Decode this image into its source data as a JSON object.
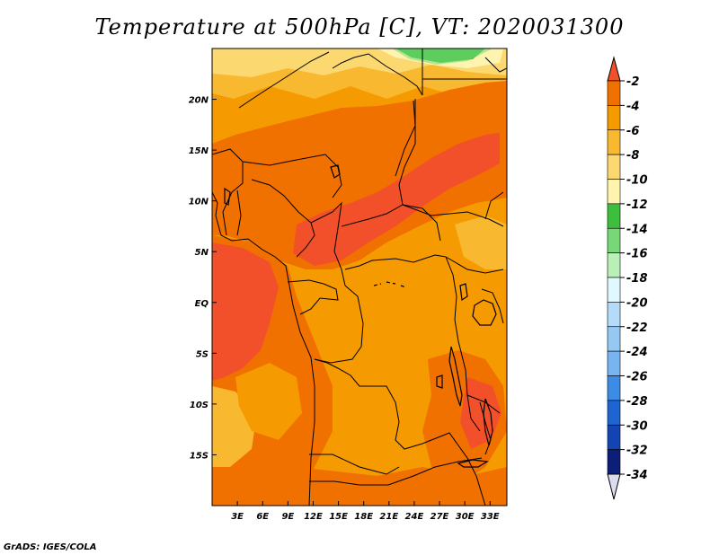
{
  "title": "Temperature at 500hPa [C], VT: 2020031300",
  "credit": "GrADS: IGES/COLA",
  "map": {
    "region": "central-africa",
    "lon_range": [
      0,
      35
    ],
    "lat_range": [
      -20,
      25
    ],
    "x_ticks": [
      "3E",
      "6E",
      "9E",
      "12E",
      "15E",
      "18E",
      "21E",
      "24E",
      "27E",
      "30E",
      "33E"
    ],
    "y_ticks": [
      "20N",
      "15N",
      "10N",
      "5N",
      "EQ",
      "5S",
      "10S",
      "15S"
    ]
  },
  "colorbar": {
    "labels": [
      "-2",
      "-4",
      "-6",
      "-8",
      "-10",
      "-12",
      "-14",
      "-16",
      "-18",
      "-20",
      "-22",
      "-24",
      "-26",
      "-28",
      "-30",
      "-32",
      "-34"
    ],
    "colors": [
      "#f2502a",
      "#f07000",
      "#f59a00",
      "#f8b830",
      "#fcd870",
      "#fef4b0",
      "#3dbf3d",
      "#78d878",
      "#b8f0b8",
      "#e0f8ff",
      "#b4dcf8",
      "#96c8f4",
      "#78b4f0",
      "#3c8ce6",
      "#1e64d2",
      "#1444b4",
      "#0c1e78",
      "#dcdcf0"
    ]
  },
  "colors": {
    "warmest": "#f2502a",
    "warm": "#f07000",
    "base": "#f59a00",
    "cool": "#f8b830",
    "pale": "#fcd870",
    "green": "#3dbf3d",
    "border": "#000000"
  }
}
